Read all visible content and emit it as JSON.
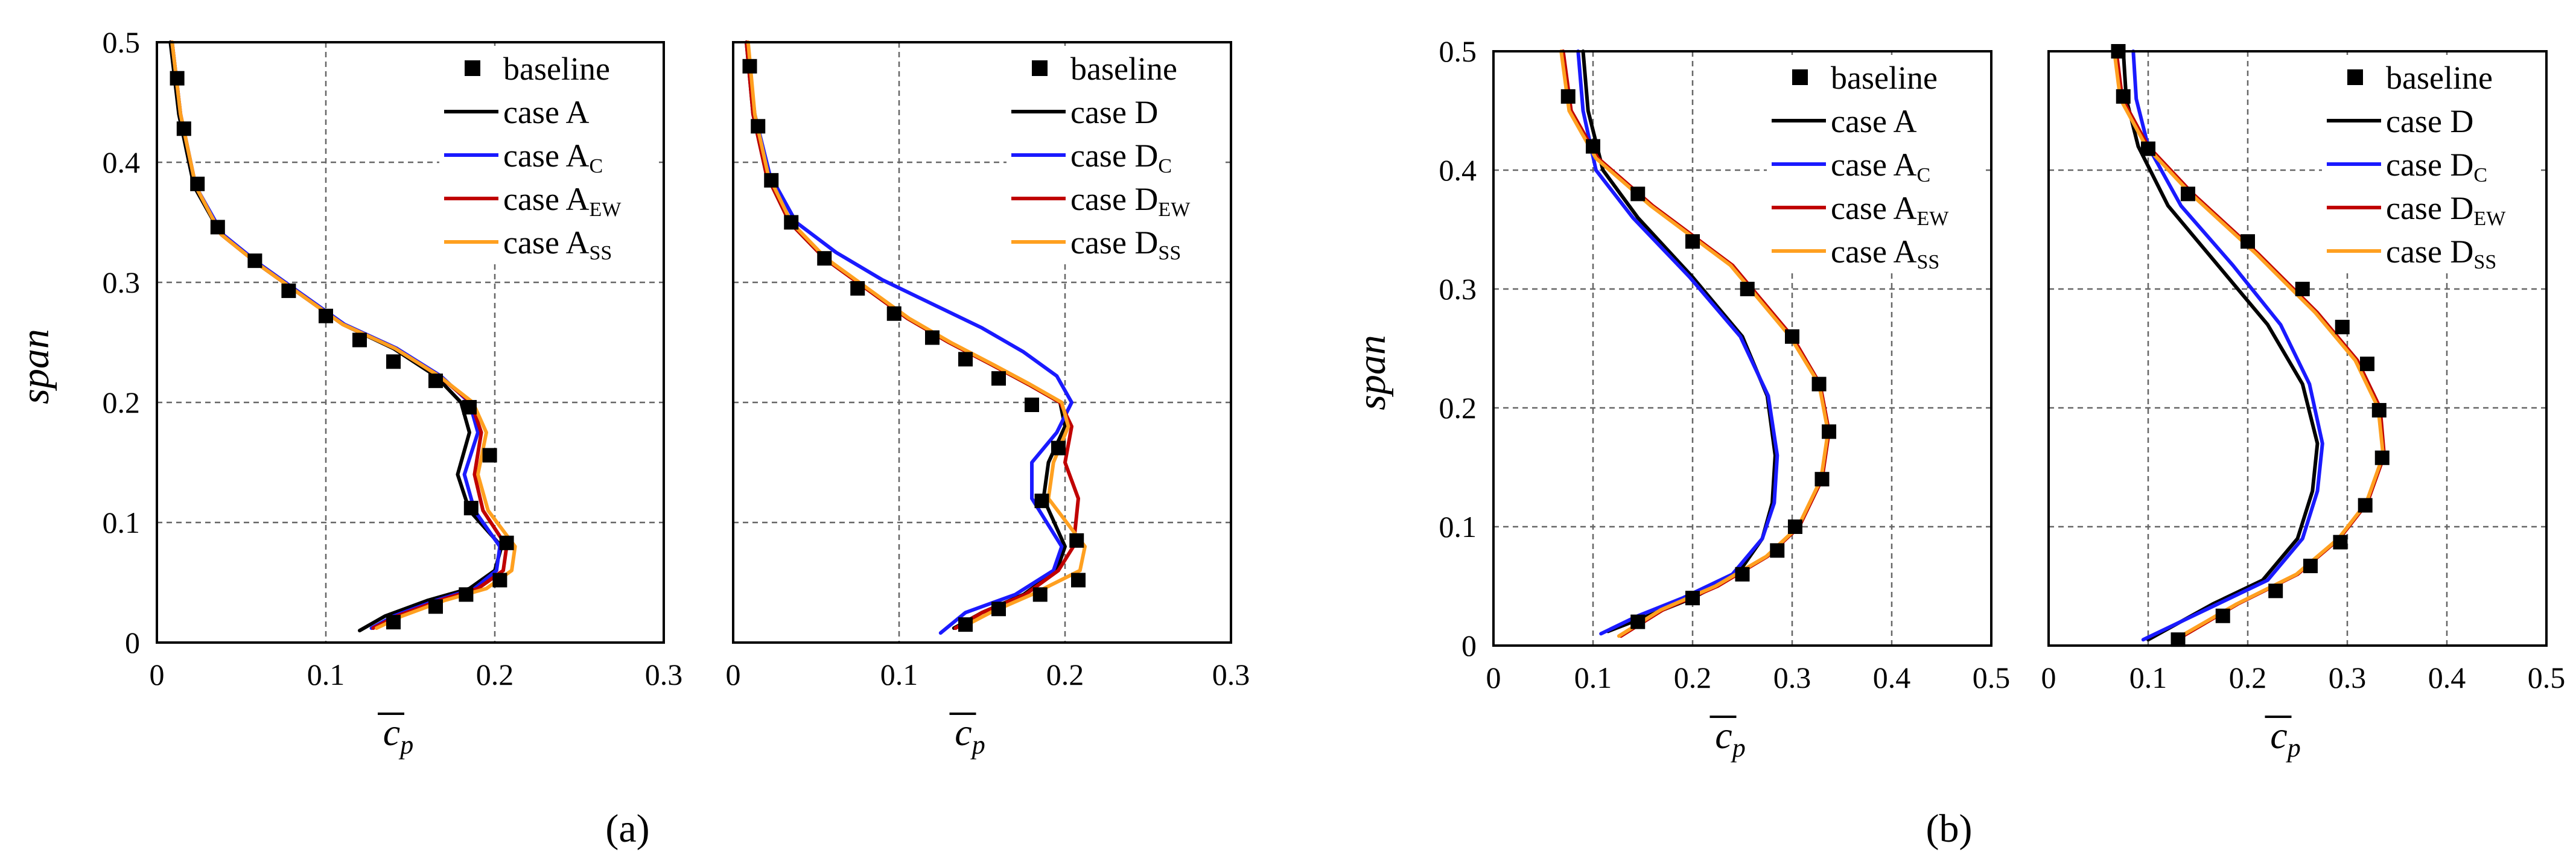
{
  "figure": {
    "panel_labels": [
      "(a)",
      "(b)"
    ]
  },
  "colors": {
    "baseline": "#000000",
    "caseBase": "#000000",
    "caseC": "#1a1aff",
    "caseEW": "#c00000",
    "caseSS": "#ffa020"
  },
  "chart_data": [
    {
      "type": "line",
      "panel": "a-left",
      "xlabel": {
        "main": "c",
        "sub": "p"
      },
      "ylabel": "span",
      "xlim": [
        0,
        0.3
      ],
      "ylim": [
        0,
        0.5
      ],
      "xticks": [
        "0",
        "0.1",
        "0.2",
        "0.3"
      ],
      "yticks": [
        "0",
        "0.1",
        "0.2",
        "0.3",
        "0.4",
        "0.5"
      ],
      "show_y_ticks": true,
      "legend": {
        "position": "top-right",
        "entries": [
          {
            "main": "baseline",
            "sub": ""
          },
          {
            "main": "case A",
            "sub": ""
          },
          {
            "main": "case A",
            "sub": "C"
          },
          {
            "main": "case A",
            "sub": "EW"
          },
          {
            "main": "case A",
            "sub": "SS"
          }
        ]
      },
      "baseline": {
        "x": [
          0.012,
          0.016,
          0.024,
          0.036,
          0.058,
          0.078,
          0.1,
          0.12,
          0.14,
          0.165,
          0.185,
          0.197,
          0.186,
          0.207,
          0.203,
          0.183,
          0.165,
          0.14
        ],
        "y": [
          0.47,
          0.428,
          0.382,
          0.346,
          0.318,
          0.293,
          0.272,
          0.252,
          0.234,
          0.218,
          0.196,
          0.156,
          0.112,
          0.083,
          0.052,
          0.04,
          0.03,
          0.017
        ]
      },
      "series": [
        {
          "name": "case A",
          "colorKey": "caseBase",
          "x": [
            0.008,
            0.013,
            0.022,
            0.038,
            0.06,
            0.085,
            0.11,
            0.14,
            0.165,
            0.18,
            0.185,
            0.178,
            0.185,
            0.204,
            0.2,
            0.185,
            0.16,
            0.135,
            0.12
          ],
          "y": [
            0.5,
            0.44,
            0.38,
            0.34,
            0.315,
            0.29,
            0.265,
            0.245,
            0.222,
            0.2,
            0.175,
            0.14,
            0.11,
            0.08,
            0.06,
            0.045,
            0.035,
            0.022,
            0.01
          ]
        },
        {
          "name": "case A_C",
          "colorKey": "caseC",
          "x": [
            0.009,
            0.014,
            0.023,
            0.039,
            0.061,
            0.086,
            0.111,
            0.142,
            0.168,
            0.185,
            0.19,
            0.182,
            0.188,
            0.203,
            0.201,
            0.188,
            0.165,
            0.14,
            0.127
          ],
          "y": [
            0.5,
            0.44,
            0.38,
            0.34,
            0.315,
            0.29,
            0.265,
            0.245,
            0.222,
            0.2,
            0.175,
            0.14,
            0.11,
            0.08,
            0.06,
            0.045,
            0.035,
            0.022,
            0.012
          ]
        },
        {
          "name": "case A_EW",
          "colorKey": "caseEW",
          "x": [
            0.009,
            0.014,
            0.023,
            0.038,
            0.06,
            0.085,
            0.11,
            0.141,
            0.167,
            0.186,
            0.192,
            0.188,
            0.193,
            0.207,
            0.205,
            0.19,
            0.167,
            0.142,
            0.128
          ],
          "y": [
            0.5,
            0.44,
            0.38,
            0.34,
            0.315,
            0.29,
            0.265,
            0.245,
            0.222,
            0.2,
            0.175,
            0.14,
            0.11,
            0.08,
            0.06,
            0.045,
            0.035,
            0.022,
            0.012
          ]
        },
        {
          "name": "case A_SS",
          "colorKey": "caseSS",
          "x": [
            0.009,
            0.014,
            0.023,
            0.038,
            0.06,
            0.085,
            0.11,
            0.141,
            0.167,
            0.187,
            0.195,
            0.19,
            0.196,
            0.212,
            0.21,
            0.195,
            0.17,
            0.145,
            0.13
          ],
          "y": [
            0.5,
            0.44,
            0.38,
            0.34,
            0.315,
            0.29,
            0.265,
            0.245,
            0.222,
            0.2,
            0.175,
            0.14,
            0.11,
            0.08,
            0.06,
            0.045,
            0.035,
            0.022,
            0.012
          ]
        }
      ]
    },
    {
      "type": "line",
      "panel": "a-right",
      "xlabel": {
        "main": "c",
        "sub": "p"
      },
      "ylabel": "",
      "xlim": [
        0,
        0.3
      ],
      "ylim": [
        0,
        0.5
      ],
      "xticks": [
        "0",
        "0.1",
        "0.2",
        "0.3"
      ],
      "yticks": [],
      "show_y_ticks": false,
      "legend": {
        "position": "top-right",
        "entries": [
          {
            "main": "baseline",
            "sub": ""
          },
          {
            "main": "case D",
            "sub": ""
          },
          {
            "main": "case D",
            "sub": "C"
          },
          {
            "main": "case D",
            "sub": "EW"
          },
          {
            "main": "case D",
            "sub": "SS"
          }
        ]
      },
      "baseline": {
        "x": [
          0.01,
          0.015,
          0.023,
          0.035,
          0.055,
          0.075,
          0.097,
          0.12,
          0.14,
          0.16,
          0.18,
          0.196,
          0.186,
          0.207,
          0.208,
          0.185,
          0.16,
          0.14
        ],
        "y": [
          0.48,
          0.43,
          0.385,
          0.35,
          0.32,
          0.295,
          0.274,
          0.254,
          0.236,
          0.22,
          0.198,
          0.162,
          0.118,
          0.085,
          0.052,
          0.04,
          0.028,
          0.015
        ]
      },
      "series": [
        {
          "name": "case D",
          "colorKey": "caseBase",
          "x": [
            0.008,
            0.012,
            0.02,
            0.034,
            0.055,
            0.08,
            0.105,
            0.13,
            0.155,
            0.178,
            0.197,
            0.2,
            0.19,
            0.187,
            0.2,
            0.195,
            0.175,
            0.15,
            0.133
          ],
          "y": [
            0.5,
            0.44,
            0.39,
            0.35,
            0.32,
            0.295,
            0.27,
            0.25,
            0.232,
            0.215,
            0.2,
            0.18,
            0.15,
            0.12,
            0.08,
            0.06,
            0.04,
            0.025,
            0.012
          ]
        },
        {
          "name": "case D_C",
          "colorKey": "caseC",
          "x": [
            0.008,
            0.013,
            0.022,
            0.038,
            0.062,
            0.09,
            0.12,
            0.15,
            0.175,
            0.195,
            0.204,
            0.195,
            0.18,
            0.18,
            0.198,
            0.193,
            0.17,
            0.14,
            0.125
          ],
          "y": [
            0.5,
            0.44,
            0.39,
            0.35,
            0.325,
            0.302,
            0.282,
            0.262,
            0.242,
            0.222,
            0.2,
            0.175,
            0.15,
            0.12,
            0.08,
            0.06,
            0.04,
            0.025,
            0.008
          ]
        },
        {
          "name": "case D_EW",
          "colorKey": "caseEW",
          "x": [
            0.008,
            0.012,
            0.02,
            0.034,
            0.055,
            0.08,
            0.105,
            0.13,
            0.155,
            0.178,
            0.197,
            0.204,
            0.2,
            0.208,
            0.205,
            0.196,
            0.176,
            0.15,
            0.134
          ],
          "y": [
            0.5,
            0.44,
            0.39,
            0.35,
            0.32,
            0.295,
            0.27,
            0.25,
            0.232,
            0.215,
            0.2,
            0.18,
            0.15,
            0.12,
            0.08,
            0.06,
            0.04,
            0.025,
            0.012
          ]
        },
        {
          "name": "case D_SS",
          "colorKey": "caseSS",
          "x": [
            0.009,
            0.013,
            0.021,
            0.035,
            0.056,
            0.081,
            0.106,
            0.131,
            0.156,
            0.179,
            0.198,
            0.202,
            0.193,
            0.19,
            0.212,
            0.209,
            0.18,
            0.155,
            0.137
          ],
          "y": [
            0.5,
            0.44,
            0.39,
            0.35,
            0.32,
            0.295,
            0.27,
            0.25,
            0.232,
            0.215,
            0.2,
            0.18,
            0.15,
            0.12,
            0.08,
            0.06,
            0.04,
            0.025,
            0.012
          ]
        }
      ]
    },
    {
      "type": "line",
      "panel": "b-left",
      "xlabel": {
        "main": "c",
        "sub": "p"
      },
      "ylabel": "span",
      "xlim": [
        0,
        0.5
      ],
      "ylim": [
        0,
        0.5
      ],
      "xticks": [
        "0",
        "0.1",
        "0.2",
        "0.3",
        "0.4",
        "0.5"
      ],
      "yticks": [
        "0",
        "0.1",
        "0.2",
        "0.3",
        "0.4",
        "0.5"
      ],
      "show_y_ticks": true,
      "legend": {
        "position": "top-right",
        "entries": [
          {
            "main": "baseline",
            "sub": ""
          },
          {
            "main": "case A",
            "sub": ""
          },
          {
            "main": "case A",
            "sub": "C"
          },
          {
            "main": "case A",
            "sub": "EW"
          },
          {
            "main": "case A",
            "sub": "SS"
          }
        ]
      },
      "baseline": {
        "x": [
          0.075,
          0.1,
          0.145,
          0.2,
          0.255,
          0.3,
          0.327,
          0.337,
          0.33,
          0.303,
          0.285,
          0.25,
          0.2,
          0.145
        ],
        "y": [
          0.462,
          0.42,
          0.38,
          0.34,
          0.3,
          0.26,
          0.22,
          0.18,
          0.14,
          0.1,
          0.08,
          0.06,
          0.04,
          0.02
        ]
      },
      "series": [
        {
          "name": "case A",
          "colorKey": "caseBase",
          "x": [
            0.09,
            0.095,
            0.11,
            0.145,
            0.2,
            0.25,
            0.275,
            0.283,
            0.28,
            0.27,
            0.245,
            0.2,
            0.155,
            0.115
          ],
          "y": [
            0.5,
            0.45,
            0.4,
            0.36,
            0.31,
            0.26,
            0.21,
            0.16,
            0.12,
            0.09,
            0.06,
            0.04,
            0.025,
            0.012
          ]
        },
        {
          "name": "case A_C",
          "colorKey": "caseC",
          "x": [
            0.085,
            0.09,
            0.103,
            0.14,
            0.197,
            0.248,
            0.276,
            0.285,
            0.282,
            0.27,
            0.24,
            0.19,
            0.145,
            0.108
          ],
          "y": [
            0.5,
            0.45,
            0.4,
            0.36,
            0.31,
            0.26,
            0.21,
            0.16,
            0.12,
            0.09,
            0.06,
            0.04,
            0.025,
            0.01
          ]
        },
        {
          "name": "case A_EW",
          "colorKey": "caseEW",
          "x": [
            0.07,
            0.078,
            0.105,
            0.16,
            0.24,
            0.3,
            0.328,
            0.337,
            0.33,
            0.307,
            0.275,
            0.225,
            0.17,
            0.128
          ],
          "y": [
            0.5,
            0.45,
            0.41,
            0.37,
            0.32,
            0.26,
            0.22,
            0.18,
            0.14,
            0.1,
            0.075,
            0.05,
            0.03,
            0.008
          ]
        },
        {
          "name": "case A_SS",
          "colorKey": "caseSS",
          "x": [
            0.068,
            0.076,
            0.103,
            0.158,
            0.238,
            0.298,
            0.327,
            0.336,
            0.329,
            0.306,
            0.274,
            0.223,
            0.168,
            0.126
          ],
          "y": [
            0.5,
            0.45,
            0.41,
            0.37,
            0.32,
            0.26,
            0.22,
            0.18,
            0.14,
            0.1,
            0.075,
            0.05,
            0.03,
            0.008
          ]
        }
      ]
    },
    {
      "type": "line",
      "panel": "b-right",
      "xlabel": {
        "main": "c",
        "sub": "p"
      },
      "ylabel": "",
      "xlim": [
        0,
        0.5
      ],
      "ylim": [
        0,
        0.5
      ],
      "xticks": [
        "0",
        "0.1",
        "0.2",
        "0.3",
        "0.4",
        "0.5"
      ],
      "yticks": [],
      "show_y_ticks": false,
      "legend": {
        "position": "top-right",
        "entries": [
          {
            "main": "baseline",
            "sub": ""
          },
          {
            "main": "case D",
            "sub": ""
          },
          {
            "main": "case D",
            "sub": "C"
          },
          {
            "main": "case D",
            "sub": "EW"
          },
          {
            "main": "case D",
            "sub": "SS"
          }
        ]
      },
      "baseline": {
        "x": [
          0.07,
          0.075,
          0.1,
          0.14,
          0.2,
          0.255,
          0.295,
          0.32,
          0.332,
          0.335,
          0.318,
          0.293,
          0.263,
          0.228,
          0.175,
          0.13
        ],
        "y": [
          0.5,
          0.462,
          0.418,
          0.38,
          0.34,
          0.3,
          0.268,
          0.237,
          0.198,
          0.158,
          0.118,
          0.087,
          0.067,
          0.046,
          0.025,
          0.005
        ]
      },
      "series": [
        {
          "name": "case D",
          "colorKey": "caseBase",
          "x": [
            0.075,
            0.078,
            0.09,
            0.12,
            0.17,
            0.22,
            0.255,
            0.27,
            0.265,
            0.25,
            0.215,
            0.165,
            0.1
          ],
          "y": [
            0.5,
            0.46,
            0.42,
            0.37,
            0.32,
            0.27,
            0.22,
            0.17,
            0.13,
            0.09,
            0.055,
            0.035,
            0.005
          ]
        },
        {
          "name": "case D_C",
          "colorKey": "caseC",
          "x": [
            0.085,
            0.088,
            0.1,
            0.133,
            0.185,
            0.233,
            0.262,
            0.275,
            0.27,
            0.255,
            0.22,
            0.17,
            0.095
          ],
          "y": [
            0.5,
            0.46,
            0.42,
            0.37,
            0.32,
            0.27,
            0.22,
            0.17,
            0.13,
            0.09,
            0.055,
            0.035,
            0.005
          ]
        },
        {
          "name": "case D_EW",
          "colorKey": "caseEW",
          "x": [
            0.068,
            0.074,
            0.1,
            0.145,
            0.21,
            0.27,
            0.31,
            0.333,
            0.337,
            0.32,
            0.292,
            0.25,
            0.19,
            0.135
          ],
          "y": [
            0.5,
            0.46,
            0.42,
            0.38,
            0.33,
            0.28,
            0.24,
            0.2,
            0.16,
            0.12,
            0.09,
            0.06,
            0.035,
            0.008
          ]
        },
        {
          "name": "case D_SS",
          "colorKey": "caseSS",
          "x": [
            0.066,
            0.072,
            0.098,
            0.143,
            0.208,
            0.268,
            0.308,
            0.331,
            0.336,
            0.319,
            0.291,
            0.249,
            0.189,
            0.133
          ],
          "y": [
            0.5,
            0.46,
            0.42,
            0.38,
            0.33,
            0.28,
            0.24,
            0.2,
            0.16,
            0.12,
            0.09,
            0.06,
            0.035,
            0.008
          ]
        }
      ]
    }
  ]
}
